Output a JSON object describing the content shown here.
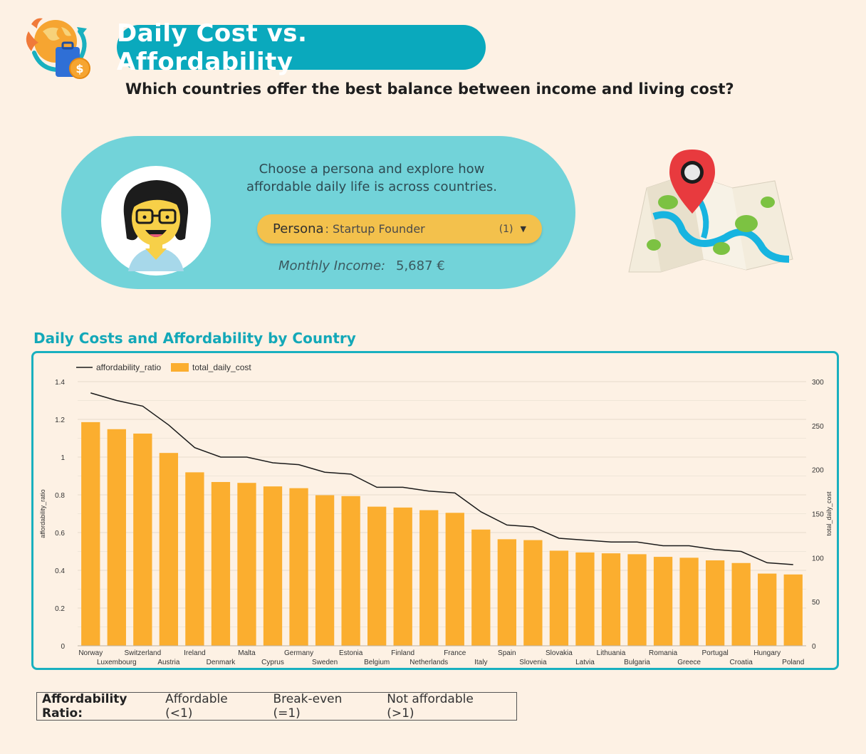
{
  "header": {
    "title": "Daily Cost vs. Affordability",
    "subtitle": "Which countries offer the best balance between income and living cost?"
  },
  "persona": {
    "prompt": "Choose a persona and explore how affordable daily life is across countries.",
    "select_label": "Persona",
    "select_value": ": Startup Founder",
    "select_count": "(1)",
    "income_label": "Monthly Income:",
    "income_value": "5,687 €"
  },
  "colors": {
    "teal": "#0aa9bd",
    "card": "#72d3d9",
    "bar": "#fbae2f",
    "line": "#1a1a1a",
    "select": "#f3c14c"
  },
  "chart_data": {
    "type": "bar",
    "title": "Daily Costs and Affordability by Country",
    "categories": [
      "Norway",
      "Luxembourg",
      "Switzerland",
      "Austria",
      "Ireland",
      "Denmark",
      "Malta",
      "Cyprus",
      "Germany",
      "Sweden",
      "Estonia",
      "Belgium",
      "Finland",
      "Netherlands",
      "France",
      "Italy",
      "Spain",
      "Slovenia",
      "Slovakia",
      "Latvia",
      "Lithuania",
      "Bulgaria",
      "Romania",
      "Greece",
      "Portugal",
      "Croatia",
      "Hungary",
      "Poland"
    ],
    "series": [
      {
        "name": "total_daily_cost",
        "type": "bar",
        "axis": "right",
        "values": [
          254,
          246,
          241,
          219,
          197,
          186,
          185,
          181,
          179,
          171,
          170,
          158,
          157,
          154,
          151,
          132,
          121,
          120,
          108,
          106,
          105,
          104,
          101,
          100,
          97,
          94,
          82,
          81
        ]
      },
      {
        "name": "affordability_ratio",
        "type": "line",
        "axis": "left",
        "values": [
          1.34,
          1.3,
          1.27,
          1.17,
          1.05,
          1.0,
          1.0,
          0.97,
          0.96,
          0.92,
          0.91,
          0.84,
          0.84,
          0.82,
          0.81,
          0.71,
          0.64,
          0.63,
          0.57,
          0.56,
          0.55,
          0.55,
          0.53,
          0.53,
          0.51,
          0.5,
          0.44,
          0.43
        ]
      }
    ],
    "ylabel_left": "affordability_ratio",
    "ylabel_right": "total_daily_cost",
    "ylim_left": [
      0,
      1.4
    ],
    "ylim_right": [
      0,
      300
    ],
    "yticks_left": [
      "0",
      "0.2",
      "0.4",
      "0.6",
      "0.8",
      "1",
      "1.2",
      "1.4"
    ],
    "yticks_right": [
      "0",
      "50",
      "100",
      "150",
      "200",
      "250",
      "300"
    ],
    "grid": true,
    "legend_position": "top-left"
  },
  "legend_note": {
    "heading": "Affordability Ratio:",
    "items": [
      "Affordable (<1)",
      "Break-even (=1)",
      "Not affordable (>1)"
    ]
  }
}
